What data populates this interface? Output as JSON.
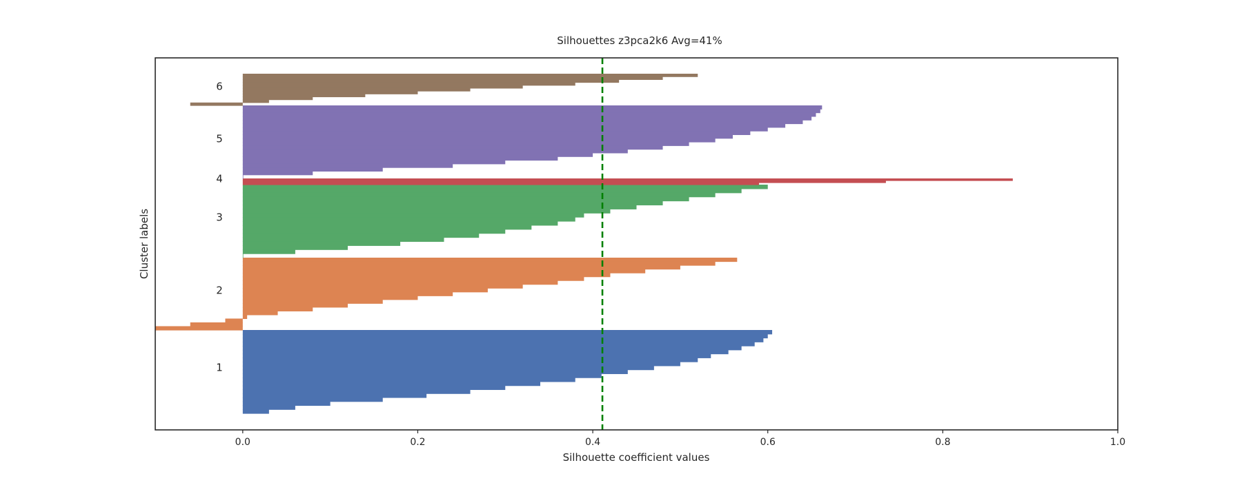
{
  "chart_data": {
    "type": "silhouette",
    "title": "Silhouettes z3pca2k6 Avg=41%",
    "xlabel": "Silhouette coefficient values",
    "ylabel": "Cluster labels",
    "xlim": [
      -0.1,
      1.0
    ],
    "xticks": [
      0.0,
      0.2,
      0.4,
      0.6,
      0.8,
      1.0
    ],
    "xtick_labels": [
      "0.0",
      "0.2",
      "0.4",
      "0.6",
      "0.8",
      "1.0"
    ],
    "grid": false,
    "average_line": {
      "value": 0.411,
      "color": "#008000",
      "style": "dashed"
    },
    "clusters": [
      {
        "label": "1",
        "color": "#4c72b0",
        "sorted_values": [
          0.605,
          0.6,
          0.595,
          0.585,
          0.57,
          0.555,
          0.535,
          0.52,
          0.5,
          0.47,
          0.44,
          0.41,
          0.38,
          0.34,
          0.3,
          0.26,
          0.21,
          0.16,
          0.1,
          0.06,
          0.03
        ]
      },
      {
        "label": "2",
        "color": "#dd8452",
        "sorted_values": [
          0.565,
          0.54,
          0.5,
          0.46,
          0.42,
          0.39,
          0.36,
          0.32,
          0.28,
          0.24,
          0.2,
          0.16,
          0.12,
          0.08,
          0.04,
          0.005,
          -0.02,
          -0.06,
          -0.1
        ]
      },
      {
        "label": "3",
        "color": "#55a868",
        "sorted_values": [
          0.6,
          0.57,
          0.54,
          0.51,
          0.48,
          0.45,
          0.42,
          0.39,
          0.38,
          0.36,
          0.33,
          0.3,
          0.27,
          0.23,
          0.18,
          0.12,
          0.06,
          0.0
        ]
      },
      {
        "label": "4",
        "color": "#c44e52",
        "sorted_values": [
          0.88,
          0.735,
          0.59
        ]
      },
      {
        "label": "5",
        "color": "#8172b3",
        "sorted_values": [
          0.662,
          0.66,
          0.655,
          0.65,
          0.64,
          0.62,
          0.6,
          0.58,
          0.56,
          0.54,
          0.51,
          0.48,
          0.44,
          0.4,
          0.36,
          0.3,
          0.24,
          0.16,
          0.08,
          0.0
        ]
      },
      {
        "label": "6",
        "color": "#937860",
        "sorted_values": [
          0.52,
          0.48,
          0.43,
          0.38,
          0.32,
          0.26,
          0.2,
          0.14,
          0.08,
          0.03,
          -0.06
        ]
      }
    ]
  }
}
